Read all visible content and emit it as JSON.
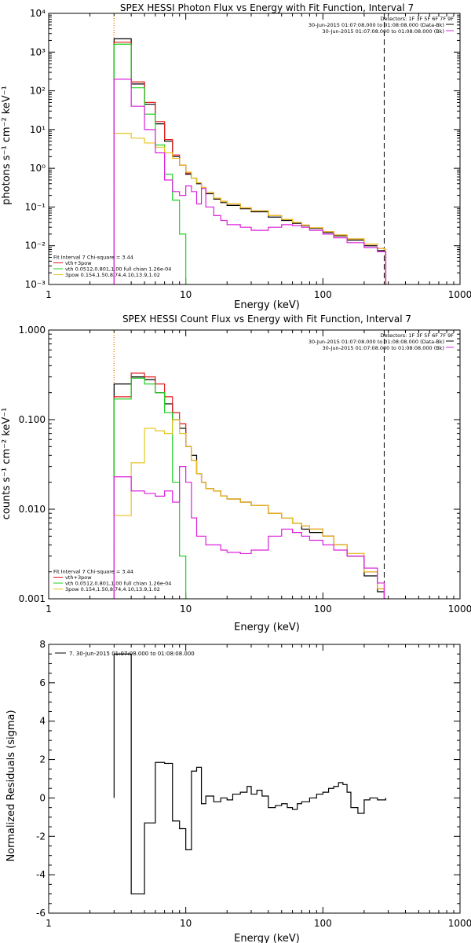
{
  "colors": {
    "black": "#000000",
    "red": "#e31a1c",
    "green": "#21d021",
    "yellow": "#e8c31c",
    "magenta": "#dc20dc",
    "orange_vline": "#ff8c00"
  },
  "chart_data": [
    {
      "type": "line",
      "title": "SPEX HESSI Photon Flux vs Energy with Fit Function, Interval 7",
      "xlabel": "Energy (keV)",
      "ylabel": "photons s⁻¹ cm⁻² keV⁻¹",
      "xscale": "log",
      "yscale": "log",
      "xlim": [
        1,
        1000
      ],
      "ylim": [
        0.001,
        10000
      ],
      "x_ticks": [
        "1",
        "10",
        "100",
        "1000"
      ],
      "y_ticks": [
        "10⁻³",
        "10⁻²",
        "10⁻¹",
        "10⁰",
        "10¹",
        "10²",
        "10³",
        "10⁴"
      ],
      "legend_top": [
        {
          "text": "Detectors: 1F 3F 5F 6F 7F 9F",
          "color": "#000000"
        },
        {
          "text": "30-Jun-2015 01:07:08.000 to 01:08:08.000 (Data-Bk)",
          "color": "#000000"
        },
        {
          "text": "30-Jun-2015 01:07:08.000 to 01:08:08.000 (Bk)",
          "color": "#dc20dc"
        }
      ],
      "legend_bottom": [
        {
          "text": "Fit Interval 7   Chi-square = 3.44",
          "color": "#000000"
        },
        {
          "text": "vth+3pow",
          "color": "#e31a1c"
        },
        {
          "text": "vth 0.0512,0.801,1.00  full chian 1.26e-04",
          "color": "#21d021"
        },
        {
          "text": "3pow 0.154,1.50,8.74,4.10,13.9,1.02",
          "color": "#e8c31c"
        }
      ],
      "vlines": [
        {
          "x": 3.0,
          "style": "dotted",
          "color": "#000000"
        },
        {
          "x": 3.0,
          "style": "dotted",
          "color": "#ff8c00"
        },
        {
          "x": 280,
          "style": "dashed",
          "color": "#000000"
        }
      ],
      "series": [
        {
          "color": "#000000",
          "x": [
            3,
            4,
            5,
            6,
            7,
            8,
            9,
            10,
            11,
            12,
            13,
            14,
            16,
            18,
            20,
            25,
            30,
            40,
            50,
            60,
            70,
            80,
            100,
            120,
            150,
            200,
            250,
            280
          ],
          "y": [
            2200,
            150,
            45,
            14,
            5,
            2,
            1.2,
            0.7,
            0.55,
            0.4,
            0.3,
            0.22,
            0.16,
            0.13,
            0.11,
            0.09,
            0.075,
            0.055,
            0.045,
            0.038,
            0.033,
            0.028,
            0.022,
            0.018,
            0.014,
            0.01,
            0.0075,
            0.007
          ]
        },
        {
          "color": "#e31a1c",
          "x": [
            3,
            4,
            5,
            6,
            7,
            8,
            9,
            10,
            11,
            12,
            13,
            14,
            16,
            18,
            20,
            25,
            30,
            40,
            50,
            60,
            70,
            80,
            100,
            120,
            150,
            200,
            250,
            280
          ],
          "y": [
            1800,
            170,
            50,
            16,
            5.5,
            2.2,
            1.2,
            0.75,
            0.55,
            0.42,
            0.32,
            0.24,
            0.17,
            0.14,
            0.12,
            0.095,
            0.08,
            0.06,
            0.048,
            0.04,
            0.034,
            0.029,
            0.023,
            0.019,
            0.015,
            0.011,
            0.0085,
            0.008
          ]
        },
        {
          "color": "#21d021",
          "x": [
            3,
            4,
            5,
            6,
            7,
            8,
            9,
            10
          ],
          "y": [
            1600,
            120,
            25,
            4,
            0.7,
            0.15,
            0.02,
            0.001
          ]
        },
        {
          "color": "#e8c31c",
          "x": [
            3,
            4,
            5,
            6,
            7,
            8,
            9,
            10,
            11,
            12,
            13,
            14,
            16,
            18,
            20,
            25,
            30,
            40,
            50,
            60,
            70,
            80,
            100,
            120,
            150,
            200,
            250,
            280
          ],
          "y": [
            8,
            6,
            4.5,
            3.5,
            2.5,
            1.8,
            1.2,
            0.8,
            0.55,
            0.42,
            0.32,
            0.24,
            0.17,
            0.14,
            0.12,
            0.095,
            0.08,
            0.06,
            0.048,
            0.04,
            0.034,
            0.029,
            0.023,
            0.019,
            0.015,
            0.011,
            0.0085,
            0.008
          ]
        },
        {
          "color": "#dc20dc",
          "x": [
            3,
            4,
            5,
            6,
            7,
            8,
            9,
            10,
            11,
            12,
            13,
            14,
            16,
            18,
            20,
            25,
            30,
            40,
            50,
            60,
            70,
            80,
            100,
            120,
            150,
            200,
            250,
            280
          ],
          "y": [
            200,
            40,
            10,
            2.5,
            0.5,
            0.25,
            0.2,
            0.35,
            0.25,
            0.12,
            0.3,
            0.1,
            0.06,
            0.045,
            0.035,
            0.03,
            0.025,
            0.03,
            0.035,
            0.033,
            0.03,
            0.025,
            0.02,
            0.016,
            0.012,
            0.009,
            0.007,
            0.007
          ]
        }
      ]
    },
    {
      "type": "line",
      "title": "SPEX HESSI Count Flux vs Energy with Fit Function, Interval 7",
      "xlabel": "Energy (keV)",
      "ylabel": "counts s⁻¹ cm⁻² keV⁻¹",
      "xscale": "log",
      "yscale": "log",
      "xlim": [
        1,
        1000
      ],
      "ylim": [
        0.001,
        1.0
      ],
      "x_ticks": [
        "1",
        "10",
        "100",
        "1000"
      ],
      "y_ticks": [
        "0.001",
        "0.010",
        "0.100",
        "1.000"
      ],
      "legend_top": [
        {
          "text": "Detectors: 1F 3F 5F 6F 7F 9F",
          "color": "#000000"
        },
        {
          "text": "30-Jun-2015 01:07:08.000 to 01:08:08.000 (Data-Bk)",
          "color": "#000000"
        },
        {
          "text": "30-Jun-2015 01:07:08.000 to 01:08:08.000 (Bk)",
          "color": "#dc20dc"
        }
      ],
      "legend_bottom": [
        {
          "text": "Fit Interval 7   Chi-square = 3.44",
          "color": "#000000"
        },
        {
          "text": "vth+3pow",
          "color": "#e31a1c"
        },
        {
          "text": "vth 0.0512,0.801,1.00  full chian 1.26e-04",
          "color": "#21d021"
        },
        {
          "text": "3pow 0.154,1.50,8.74,4.10,13.9,1.02",
          "color": "#e8c31c"
        }
      ],
      "vlines": [
        {
          "x": 3.0,
          "style": "dotted",
          "color": "#000000"
        },
        {
          "x": 3.0,
          "style": "dotted",
          "color": "#ff8c00"
        },
        {
          "x": 280,
          "style": "dashed",
          "color": "#000000"
        }
      ],
      "series": [
        {
          "color": "#000000",
          "x": [
            3,
            4,
            5,
            6,
            7,
            8,
            9,
            10,
            11,
            12,
            13,
            14,
            16,
            18,
            20,
            25,
            30,
            40,
            50,
            60,
            70,
            80,
            100,
            120,
            150,
            200,
            250,
            280
          ],
          "y": [
            0.25,
            0.3,
            0.28,
            0.2,
            0.15,
            0.1,
            0.08,
            0.05,
            0.04,
            0.025,
            0.02,
            0.017,
            0.016,
            0.014,
            0.013,
            0.012,
            0.011,
            0.009,
            0.008,
            0.007,
            0.006,
            0.0055,
            0.005,
            0.004,
            0.003,
            0.0018,
            0.0012,
            0.001
          ]
        },
        {
          "color": "#e31a1c",
          "x": [
            3,
            4,
            5,
            6,
            7,
            8,
            9,
            10,
            11,
            12,
            13,
            14,
            16,
            18,
            20,
            25,
            30,
            40,
            50,
            60,
            70,
            80,
            100,
            120,
            150,
            200,
            250,
            280
          ],
          "y": [
            0.18,
            0.33,
            0.3,
            0.25,
            0.18,
            0.12,
            0.09,
            0.05,
            0.035,
            0.025,
            0.02,
            0.017,
            0.016,
            0.014,
            0.013,
            0.012,
            0.011,
            0.009,
            0.008,
            0.007,
            0.0065,
            0.006,
            0.005,
            0.004,
            0.0032,
            0.002,
            0.0013,
            0.001
          ]
        },
        {
          "color": "#21d021",
          "x": [
            3,
            4,
            5,
            6,
            7,
            8,
            9,
            10
          ],
          "y": [
            0.17,
            0.29,
            0.25,
            0.2,
            0.12,
            0.02,
            0.003,
            0.001
          ]
        },
        {
          "color": "#e8c31c",
          "x": [
            3,
            4,
            5,
            6,
            7,
            8,
            9,
            10,
            11,
            12,
            13,
            14,
            16,
            18,
            20,
            25,
            30,
            40,
            50,
            60,
            70,
            80,
            100,
            120,
            150,
            200,
            250,
            280
          ],
          "y": [
            0.0085,
            0.033,
            0.08,
            0.075,
            0.07,
            0.1,
            0.07,
            0.05,
            0.035,
            0.025,
            0.02,
            0.017,
            0.016,
            0.014,
            0.013,
            0.012,
            0.011,
            0.009,
            0.008,
            0.007,
            0.0065,
            0.006,
            0.005,
            0.004,
            0.0032,
            0.002,
            0.0013,
            0.001
          ]
        },
        {
          "color": "#dc20dc",
          "x": [
            3,
            4,
            5,
            6,
            7,
            8,
            9,
            10,
            11,
            12,
            13,
            14,
            16,
            18,
            20,
            25,
            30,
            40,
            50,
            60,
            70,
            80,
            100,
            120,
            150,
            200,
            250,
            280
          ],
          "y": [
            0.023,
            0.016,
            0.015,
            0.014,
            0.016,
            0.012,
            0.03,
            0.02,
            0.008,
            0.005,
            0.005,
            0.004,
            0.004,
            0.0035,
            0.0033,
            0.0032,
            0.0035,
            0.005,
            0.006,
            0.0055,
            0.005,
            0.0045,
            0.004,
            0.0035,
            0.003,
            0.0022,
            0.0015,
            0.001
          ]
        }
      ]
    },
    {
      "type": "line",
      "title": "",
      "xlabel": "Energy (keV)",
      "ylabel": "Normalized Residuals (sigma)",
      "xscale": "log",
      "yscale": "linear",
      "xlim": [
        1,
        1000
      ],
      "ylim": [
        -6,
        8
      ],
      "x_ticks": [
        "1",
        "10",
        "100",
        "1000"
      ],
      "y_ticks": [
        "-6",
        "-4",
        "-2",
        "0",
        "2",
        "4",
        "6",
        "8"
      ],
      "legend_top": [
        {
          "text": "7. 30-Jun-2015 01:07:08.000 to 01:08:08.000",
          "color": "#000000"
        }
      ],
      "legend_bottom": [],
      "vlines": [],
      "series": [
        {
          "color": "#000000",
          "x": [
            3.0,
            4.0,
            5.0,
            6.0,
            7.0,
            8.0,
            9.0,
            10.0,
            11.0,
            12.0,
            13.0,
            14.0,
            16.0,
            18.0,
            20.0,
            22.0,
            25.0,
            28.0,
            30.0,
            33.0,
            36.0,
            40.0,
            45.0,
            50.0,
            55.0,
            60.0,
            65.0,
            70.0,
            80.0,
            90.0,
            100.0,
            110.0,
            120.0,
            130.0,
            140.0,
            150.0,
            160.0,
            180.0,
            200.0,
            220.0,
            250.0,
            280.0
          ],
          "y": [
            7.5,
            -5,
            -1.3,
            1.85,
            1.8,
            -1.2,
            -1.6,
            -2.7,
            1.4,
            1.6,
            -0.3,
            0.1,
            -0.2,
            0.0,
            -0.1,
            0.2,
            0.3,
            0.6,
            0.2,
            0.4,
            0.1,
            -0.5,
            -0.4,
            -0.3,
            -0.5,
            -0.6,
            -0.3,
            -0.2,
            0.0,
            0.2,
            0.3,
            0.5,
            0.6,
            0.8,
            0.7,
            0.3,
            -0.5,
            -0.8,
            -0.1,
            0.0,
            -0.1,
            -0.1
          ]
        }
      ]
    }
  ]
}
